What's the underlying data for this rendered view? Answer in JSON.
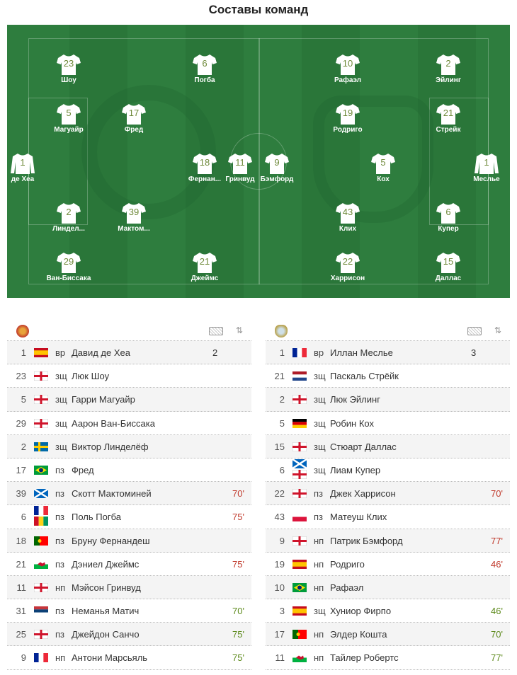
{
  "title": "Составы команд",
  "colors": {
    "pitch": "#2e7d3e",
    "sub_off": "#c0392b",
    "sub_on": "#5d8a1c"
  },
  "pitch": {
    "home": [
      {
        "num": "23",
        "name": "Шоу"
      },
      {
        "num": "6",
        "name": "Погба"
      },
      {
        "num": "5",
        "name": "Магуайр"
      },
      {
        "num": "17",
        "name": "Фред"
      },
      {
        "num": "1",
        "name": "де Хеа",
        "gk": true
      },
      {
        "num": "18",
        "name": "Фернан..."
      },
      {
        "num": "11",
        "name": "Гринвуд"
      },
      {
        "num": "2",
        "name": "Линдел..."
      },
      {
        "num": "39",
        "name": "Мактом..."
      },
      {
        "num": "29",
        "name": "Ван-Биссака"
      },
      {
        "num": "21",
        "name": "Джеймс"
      }
    ],
    "away": [
      {
        "num": "10",
        "name": "Рафаэл"
      },
      {
        "num": "2",
        "name": "Эйлинг"
      },
      {
        "num": "19",
        "name": "Родриго"
      },
      {
        "num": "21",
        "name": "Стрейк"
      },
      {
        "num": "9",
        "name": "Бэмфорд"
      },
      {
        "num": "5",
        "name": "Кох"
      },
      {
        "num": "1",
        "name": "Меслье",
        "gk": true
      },
      {
        "num": "43",
        "name": "Клих"
      },
      {
        "num": "6",
        "name": "Купер"
      },
      {
        "num": "22",
        "name": "Харрисон"
      },
      {
        "num": "15",
        "name": "Даллас"
      }
    ]
  },
  "icons": {
    "home_logo": "manchester-united-crest",
    "away_logo": "leeds-united-crest",
    "goals": "goal-net-icon",
    "sort": "sort-arrows-icon",
    "sort_glyph": "⇅"
  },
  "home_table": [
    {
      "num": "1",
      "flag": "es",
      "pos": "вр",
      "name": "Давид де Хеа",
      "goals": "2",
      "sub": "",
      "sub_type": ""
    },
    {
      "num": "23",
      "flag": "en",
      "pos": "зщ",
      "name": "Люк Шоу",
      "goals": "",
      "sub": "",
      "sub_type": ""
    },
    {
      "num": "5",
      "flag": "en",
      "pos": "зщ",
      "name": "Гарри Магуайр",
      "goals": "",
      "sub": "",
      "sub_type": ""
    },
    {
      "num": "29",
      "flag": "en",
      "pos": "зщ",
      "name": "Аарон Ван-Биссака",
      "goals": "",
      "sub": "",
      "sub_type": ""
    },
    {
      "num": "2",
      "flag": "se",
      "pos": "зщ",
      "name": "Виктор Линделёф",
      "goals": "",
      "sub": "",
      "sub_type": ""
    },
    {
      "num": "17",
      "flag": "br",
      "pos": "пз",
      "name": "Фред",
      "goals": "",
      "sub": "",
      "sub_type": ""
    },
    {
      "num": "39",
      "flag": "sc",
      "pos": "пз",
      "name": "Скотт Мактоминей",
      "goals": "",
      "sub": "70'",
      "sub_type": "off"
    },
    {
      "num": "6",
      "flag": "fr+gn",
      "pos": "пз",
      "name": "Поль Погба",
      "goals": "",
      "sub": "75'",
      "sub_type": "off"
    },
    {
      "num": "18",
      "flag": "pt",
      "pos": "пз",
      "name": "Бруну Фернандеш",
      "goals": "",
      "sub": "",
      "sub_type": ""
    },
    {
      "num": "21",
      "flag": "wa",
      "pos": "пз",
      "name": "Дэниел Джеймс",
      "goals": "",
      "sub": "75'",
      "sub_type": "off"
    },
    {
      "num": "11",
      "flag": "en",
      "pos": "нп",
      "name": "Мэйсон Гринвуд",
      "goals": "",
      "sub": "",
      "sub_type": ""
    },
    {
      "num": "31",
      "flag": "rs",
      "pos": "пз",
      "name": "Неманья Матич",
      "goals": "",
      "sub": "70'",
      "sub_type": "on"
    },
    {
      "num": "25",
      "flag": "en",
      "pos": "пз",
      "name": "Джейдон Санчо",
      "goals": "",
      "sub": "75'",
      "sub_type": "on"
    },
    {
      "num": "9",
      "flag": "fr",
      "pos": "нп",
      "name": "Антони Марсьяль",
      "goals": "",
      "sub": "75'",
      "sub_type": "on"
    }
  ],
  "away_table": [
    {
      "num": "1",
      "flag": "fr",
      "pos": "вр",
      "name": "Иллан Меслье",
      "goals": "3",
      "sub": "",
      "sub_type": ""
    },
    {
      "num": "21",
      "flag": "nl",
      "pos": "зщ",
      "name": "Паскаль Стрёйк",
      "goals": "",
      "sub": "",
      "sub_type": ""
    },
    {
      "num": "2",
      "flag": "en",
      "pos": "зщ",
      "name": "Люк Эйлинг",
      "goals": "",
      "sub": "",
      "sub_type": ""
    },
    {
      "num": "5",
      "flag": "de",
      "pos": "зщ",
      "name": "Робин Кох",
      "goals": "",
      "sub": "",
      "sub_type": ""
    },
    {
      "num": "15",
      "flag": "ni",
      "pos": "зщ",
      "name": "Стюарт Даллас",
      "goals": "",
      "sub": "",
      "sub_type": ""
    },
    {
      "num": "6",
      "flag": "sc+en",
      "pos": "зщ",
      "name": "Лиам Купер",
      "goals": "",
      "sub": "",
      "sub_type": ""
    },
    {
      "num": "22",
      "flag": "en",
      "pos": "пз",
      "name": "Джек Харрисон",
      "goals": "",
      "sub": "70'",
      "sub_type": "off"
    },
    {
      "num": "43",
      "flag": "pl",
      "pos": "пз",
      "name": "Матеуш Клих",
      "goals": "",
      "sub": "",
      "sub_type": ""
    },
    {
      "num": "9",
      "flag": "en",
      "pos": "нп",
      "name": "Патрик Бэмфорд",
      "goals": "",
      "sub": "77'",
      "sub_type": "off"
    },
    {
      "num": "19",
      "flag": "es",
      "pos": "нп",
      "name": "Родриго",
      "goals": "",
      "sub": "46'",
      "sub_type": "off"
    },
    {
      "num": "10",
      "flag": "br",
      "pos": "нп",
      "name": "Рафаэл",
      "goals": "",
      "sub": "",
      "sub_type": ""
    },
    {
      "num": "3",
      "flag": "es",
      "pos": "зщ",
      "name": "Хуниор Фирпо",
      "goals": "",
      "sub": "46'",
      "sub_type": "on"
    },
    {
      "num": "17",
      "flag": "pt",
      "pos": "нп",
      "name": "Элдер Кошта",
      "goals": "",
      "sub": "70'",
      "sub_type": "on"
    },
    {
      "num": "11",
      "flag": "wa",
      "pos": "нп",
      "name": "Тайлер Робертс",
      "goals": "",
      "sub": "77'",
      "sub_type": "on"
    }
  ]
}
